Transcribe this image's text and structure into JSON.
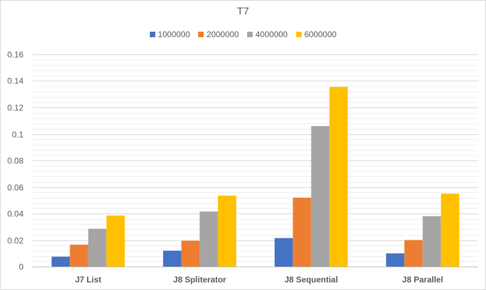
{
  "chart_data": {
    "type": "bar",
    "title": "T7",
    "xlabel": "",
    "ylabel": "",
    "categories": [
      "J7 List",
      "J8 Spliterator",
      "J8 Sequential",
      "J8 Parallel"
    ],
    "series": [
      {
        "name": "1000000",
        "color": "#4472c4",
        "values": [
          0.0075,
          0.012,
          0.0215,
          0.01
        ]
      },
      {
        "name": "2000000",
        "color": "#ed7d31",
        "values": [
          0.0165,
          0.0195,
          0.052,
          0.02
        ]
      },
      {
        "name": "4000000",
        "color": "#a5a5a5",
        "values": [
          0.0285,
          0.0415,
          0.106,
          0.038
        ]
      },
      {
        "name": "6000000",
        "color": "#ffc000",
        "values": [
          0.0385,
          0.0535,
          0.1355,
          0.055
        ]
      }
    ],
    "ylim": [
      0,
      0.16
    ],
    "yticks": [
      0,
      0.02,
      0.04,
      0.06,
      0.08,
      0.1,
      0.12,
      0.14,
      0.16
    ],
    "ytick_labels": [
      "0",
      "0.02",
      "0.04",
      "0.06",
      "0.08",
      "0.1",
      "0.12",
      "0.14",
      "0.16"
    ],
    "minor_grid_step": 0.004,
    "grid": true,
    "legend_position": "top"
  }
}
